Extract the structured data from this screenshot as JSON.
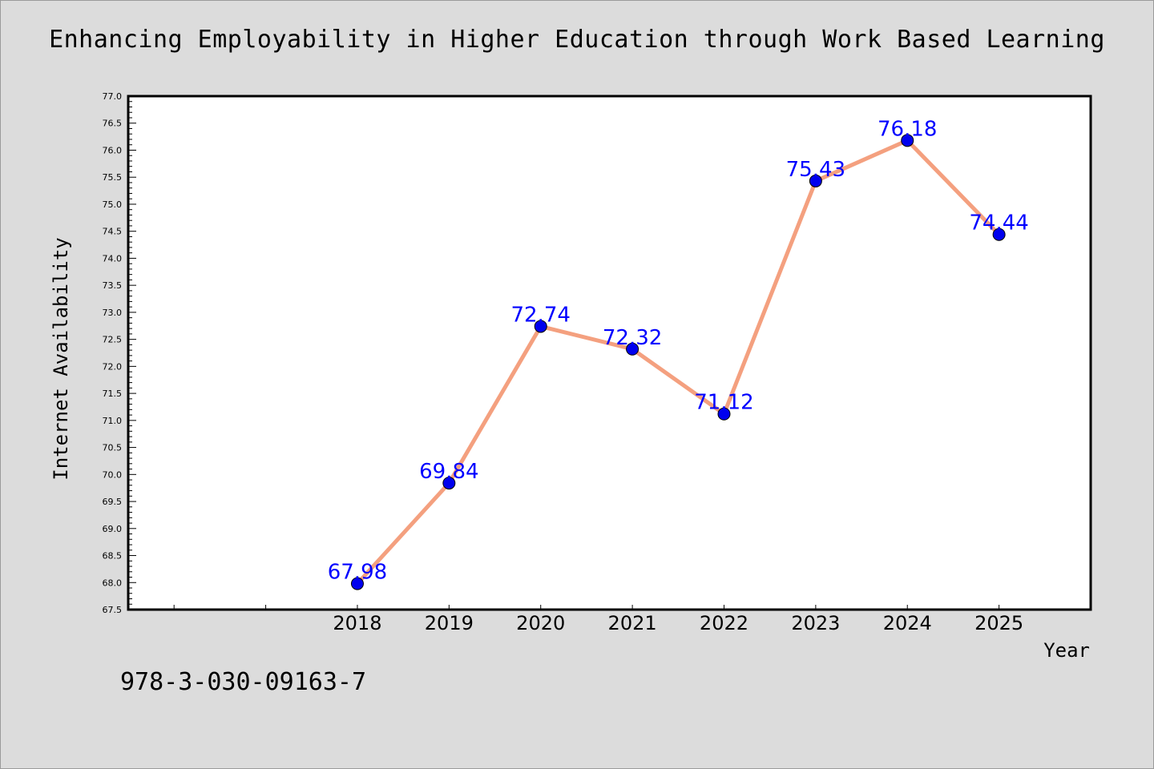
{
  "header": {
    "title": "Enhancing Employability in Higher Education through Work Based Learning"
  },
  "footer": {
    "code": "978-3-030-09163-7"
  },
  "chart_data": {
    "type": "line",
    "title": "Enhancing Employability in Higher Education through Work Based Learning",
    "xlabel": "Year",
    "ylabel": "Internet Availability",
    "x": [
      "2018",
      "2019",
      "2020",
      "2021",
      "2022",
      "2023",
      "2024",
      "2025"
    ],
    "xlim": [
      2015.5,
      2026
    ],
    "ylim": [
      67.5,
      77.0
    ],
    "ytick_step": 0.5,
    "grid": false,
    "legend": "none",
    "series": [
      {
        "values": [
          67.98,
          69.84,
          72.74,
          72.32,
          71.12,
          75.43,
          76.18,
          74.44
        ],
        "line_color": "#f4a07f",
        "marker_color": "#0000ee",
        "label_color": "#0000ff"
      }
    ],
    "data_labels": [
      "67.98",
      "69.84",
      "72.74",
      "72.32",
      "71.12",
      "75.43",
      "76.18",
      "74.44"
    ]
  }
}
